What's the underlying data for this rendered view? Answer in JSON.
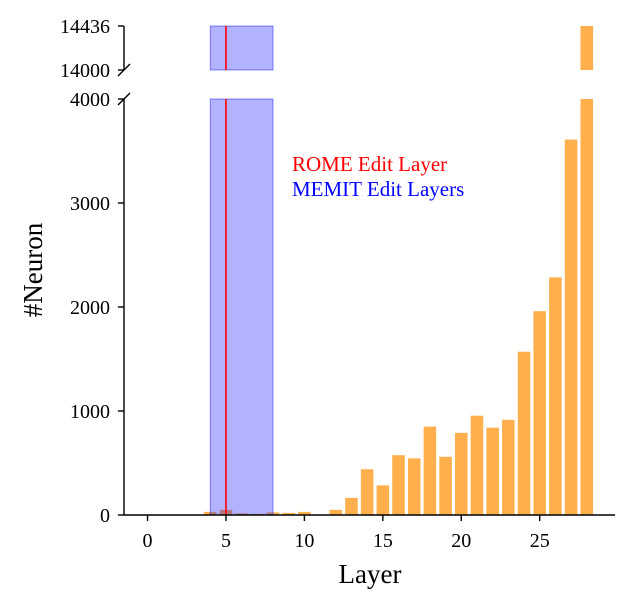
{
  "chart_data": {
    "type": "bar",
    "xlabel": "Layer",
    "ylabel": "#Neuron",
    "x": [
      0,
      1,
      2,
      3,
      4,
      5,
      6,
      7,
      8,
      9,
      10,
      11,
      12,
      13,
      14,
      15,
      16,
      17,
      18,
      19,
      20,
      21,
      22,
      23,
      24,
      25,
      26,
      27,
      28
    ],
    "values": [
      0,
      0,
      0,
      0,
      30,
      50,
      15,
      10,
      25,
      20,
      30,
      5,
      50,
      165,
      440,
      285,
      575,
      545,
      850,
      560,
      790,
      955,
      840,
      915,
      1570,
      1960,
      2285,
      3610,
      14436
    ],
    "bar_color": "#ffb04c",
    "xlim": [
      -1.5,
      29.8
    ],
    "xticks": [
      0,
      5,
      10,
      15,
      20,
      25
    ],
    "xtick_labels": [
      "0",
      "5",
      "10",
      "15",
      "20",
      "25"
    ],
    "y_lower_range": [
      0,
      4000
    ],
    "y_upper_range": [
      14000,
      14436
    ],
    "yticks_lower": [
      0,
      1000,
      2000,
      3000,
      4000
    ],
    "ytick_labels_lower": [
      "0",
      "1000",
      "2000",
      "3000",
      "4000"
    ],
    "yticks_upper": [
      14000,
      14436
    ],
    "ytick_labels_upper": [
      "14000",
      "14436"
    ],
    "broken_y_axis": true,
    "rome_edit_layer": 5,
    "memit_edit_layers": [
      4,
      8
    ],
    "legend": [
      {
        "label": "ROME Edit Layer",
        "color": "#ff0000"
      },
      {
        "label": "MEMIT Edit Layers",
        "color": "#0000ff"
      }
    ],
    "legend_position": "top-right",
    "grid": false
  }
}
